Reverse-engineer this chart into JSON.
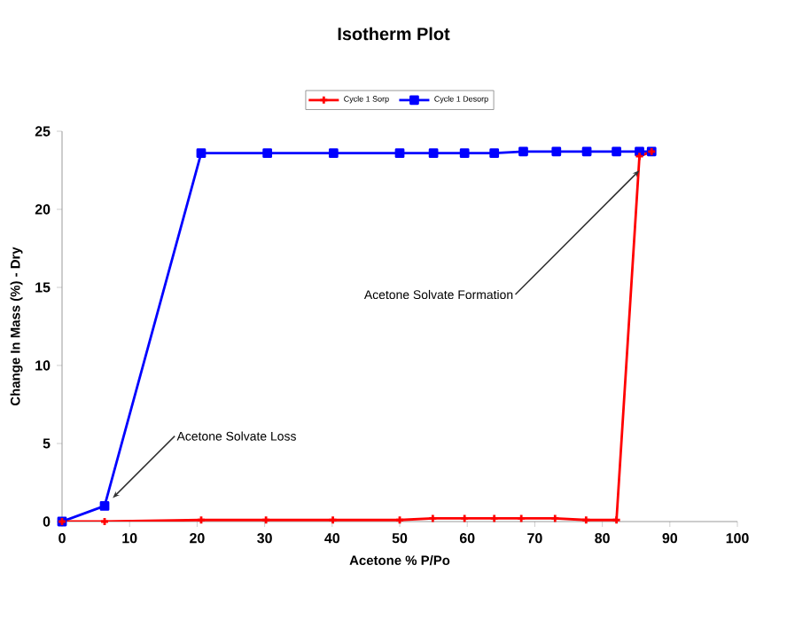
{
  "chart_data": {
    "type": "line",
    "title": "Isotherm Plot",
    "xlabel": "Acetone % P/Po",
    "ylabel": "Change In Mass (%) - Dry",
    "xlim": [
      0,
      100
    ],
    "ylim": [
      0,
      25
    ],
    "xticks": [
      0,
      10,
      20,
      30,
      40,
      50,
      60,
      70,
      80,
      90,
      100
    ],
    "yticks": [
      0,
      5,
      10,
      15,
      20,
      25
    ],
    "grid": false,
    "legend": "top",
    "series": [
      {
        "name": "Cycle 1 Sorp",
        "color": "#ff0000",
        "marker": "cross",
        "x": [
          0,
          6.3,
          20.6,
          30.2,
          40.1,
          50,
          54.9,
          59.6,
          64,
          68,
          73,
          77.6,
          82.1,
          85.5,
          87.3
        ],
        "values": [
          0,
          0,
          0.1,
          0.1,
          0.1,
          0.1,
          0.2,
          0.2,
          0.2,
          0.2,
          0.2,
          0.1,
          0.1,
          23.4,
          23.7
        ]
      },
      {
        "name": "Cycle 1 Desorp",
        "color": "#0000ff",
        "marker": "square",
        "x": [
          0,
          6.3,
          20.6,
          30.4,
          40.2,
          50,
          55,
          59.6,
          64,
          68.3,
          73.2,
          77.7,
          82.1,
          85.5,
          87.3
        ],
        "values": [
          0,
          1.0,
          23.6,
          23.6,
          23.6,
          23.6,
          23.6,
          23.6,
          23.6,
          23.7,
          23.7,
          23.7,
          23.7,
          23.7,
          23.7
        ]
      }
    ],
    "annotations": [
      {
        "text": "Acetone Solvate Formation",
        "x": 85.5,
        "y": 22.5
      },
      {
        "text": "Acetone Solvate Loss",
        "x": 7.5,
        "y": 1.5
      }
    ]
  }
}
